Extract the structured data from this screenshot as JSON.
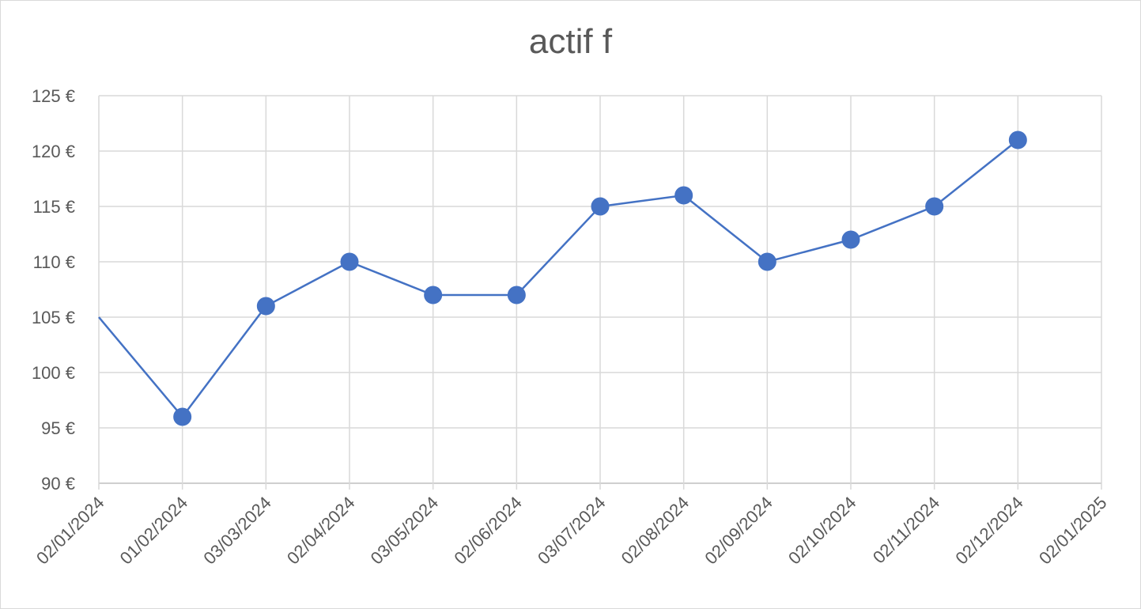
{
  "chart_data": {
    "type": "line",
    "title": "actif f",
    "xlabel": "",
    "ylabel": "",
    "ylim": [
      90,
      125
    ],
    "y_step": 5,
    "y_tick_labels": [
      "90 €",
      "95 €",
      "100 €",
      "105 €",
      "110 €",
      "115 €",
      "120 €",
      "125 €"
    ],
    "x_tick_labels": [
      "02/01/2024",
      "01/02/2024",
      "03/03/2024",
      "02/04/2024",
      "03/05/2024",
      "02/06/2024",
      "03/07/2024",
      "02/08/2024",
      "02/09/2024",
      "02/10/2024",
      "02/11/2024",
      "02/12/2024",
      "02/01/2025"
    ],
    "series": [
      {
        "color": "#4472c4",
        "x": [
          "02/01/2024",
          "01/02/2024",
          "03/03/2024",
          "02/04/2024",
          "03/05/2024",
          "02/06/2024",
          "03/07/2024",
          "02/08/2024",
          "02/09/2024",
          "02/10/2024",
          "02/11/2024",
          "02/12/2024"
        ],
        "values": [
          105,
          96,
          106,
          110,
          107,
          107,
          115,
          116,
          110,
          112,
          115,
          121
        ],
        "markers_from_index": 1
      }
    ],
    "grid": true,
    "legend": "none"
  }
}
